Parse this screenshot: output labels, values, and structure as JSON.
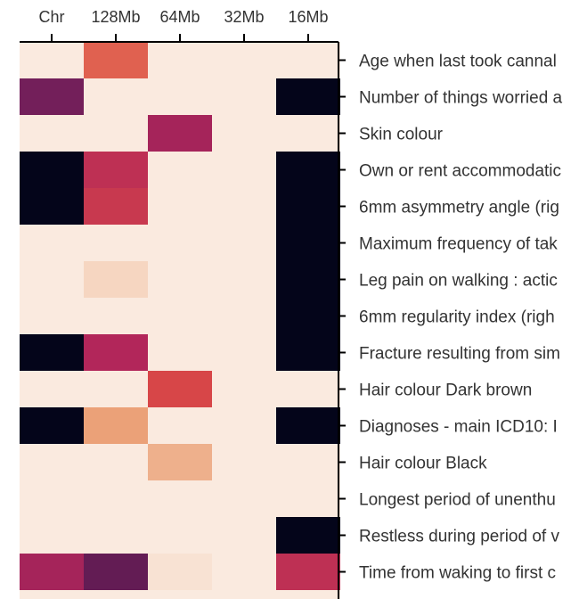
{
  "chart_data": {
    "type": "heatmap",
    "title": "",
    "xlabel": "",
    "ylabel": "",
    "x_position": "top",
    "y_position": "right",
    "grid": false,
    "legend": "none",
    "columns": [
      "Chr",
      "128Mb",
      "64Mb",
      "32Mb",
      "16Mb"
    ],
    "rows": [
      "Age when last took cannal",
      "Number of things worried a",
      "Skin colour",
      "Own or rent accommodatic",
      "6mm asymmetry angle (rig",
      "Maximum frequency of tak",
      "Leg pain on walking : actic",
      "6mm regularity index (righ",
      "Fracture resulting from sim",
      "Hair colour Dark brown",
      "Diagnoses - main ICD10: I",
      "Hair colour Black",
      "Longest period of unenthu",
      "Restless during period of v",
      "Time from waking to first c",
      ""
    ],
    "values": [
      [
        0.0,
        0.45,
        0.0,
        0.0,
        0.0
      ],
      [
        0.82,
        0.0,
        0.0,
        0.0,
        1.0
      ],
      [
        0.0,
        0.0,
        0.7,
        0.0,
        0.0
      ],
      [
        1.0,
        0.62,
        0.0,
        0.0,
        1.0
      ],
      [
        1.0,
        0.58,
        0.0,
        0.0,
        1.0
      ],
      [
        0.0,
        0.0,
        0.0,
        0.0,
        1.0
      ],
      [
        0.0,
        0.1,
        0.0,
        0.0,
        1.0
      ],
      [
        0.0,
        0.0,
        0.0,
        0.0,
        1.0
      ],
      [
        1.0,
        0.67,
        0.0,
        0.0,
        1.0
      ],
      [
        0.0,
        0.0,
        0.52,
        0.0,
        0.0
      ],
      [
        1.0,
        0.3,
        0.0,
        0.0,
        1.0
      ],
      [
        0.0,
        0.0,
        0.25,
        0.0,
        0.0
      ],
      [
        0.0,
        0.0,
        0.0,
        0.0,
        0.0
      ],
      [
        0.0,
        0.0,
        0.0,
        0.0,
        1.0
      ],
      [
        0.7,
        0.85,
        0.04,
        0.0,
        0.62
      ],
      [
        0.0,
        0.0,
        0.0,
        0.0,
        0.0
      ]
    ],
    "colorscale": [
      "#faeadf",
      "#f3c8ad",
      "#e9976b",
      "#dc4a45",
      "#b3265a",
      "#6d1e5a",
      "#04051a"
    ]
  }
}
